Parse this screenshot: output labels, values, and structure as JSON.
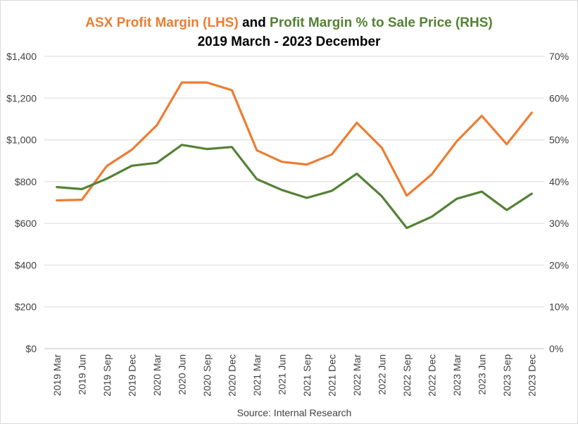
{
  "chart_data": {
    "type": "line",
    "title": {
      "part1": "ASX Profit Margin (LHS)",
      "connector": " and ",
      "part2": "Profit Margin % to Sale Price (RHS)"
    },
    "subtitle": "2019 March - 2023 December",
    "source": "Source: Internal Research",
    "categories": [
      "2019 Mar",
      "2019 Jun",
      "2019 Sep",
      "2019 Dec",
      "2020 Mar",
      "2020 Jun",
      "2020 Sep",
      "2020 Dec",
      "2021 Mar",
      "2021 Jun",
      "2021 Sep",
      "2021 Dec",
      "2022 Mar",
      "2022 Jun",
      "2022 Sep",
      "2022 Dec",
      "2023 Mar",
      "2023 Jun",
      "2023 Sep",
      "2023 Dec"
    ],
    "left_axis": {
      "ylim": [
        0,
        1400
      ],
      "ticks": [
        0,
        200,
        400,
        600,
        800,
        1000,
        1200,
        1400
      ],
      "tick_labels": [
        "$0",
        "$200",
        "$400",
        "$600",
        "$800",
        "$1,000",
        "$1,200",
        "$1,400"
      ]
    },
    "right_axis": {
      "ylim": [
        0,
        70
      ],
      "ticks": [
        0,
        10,
        20,
        30,
        40,
        50,
        60,
        70
      ],
      "tick_labels": [
        "0%",
        "10%",
        "20%",
        "30%",
        "40%",
        "50%",
        "60%",
        "70%"
      ]
    },
    "series": [
      {
        "axis": "left",
        "color": "#ED7D31",
        "values": [
          710,
          713,
          875,
          953,
          1070,
          1275,
          1275,
          1238,
          950,
          895,
          882,
          930,
          1082,
          962,
          733,
          835,
          993,
          1115,
          979,
          1130
        ]
      },
      {
        "axis": "right",
        "color": "#548235",
        "values": [
          38.7,
          38.2,
          40.7,
          43.8,
          44.5,
          48.8,
          47.8,
          48.3,
          40.6,
          38.0,
          36.1,
          37.8,
          41.9,
          36.5,
          28.9,
          31.6,
          35.9,
          37.6,
          33.2,
          37.1
        ]
      }
    ],
    "grid": true,
    "legend": "none"
  }
}
